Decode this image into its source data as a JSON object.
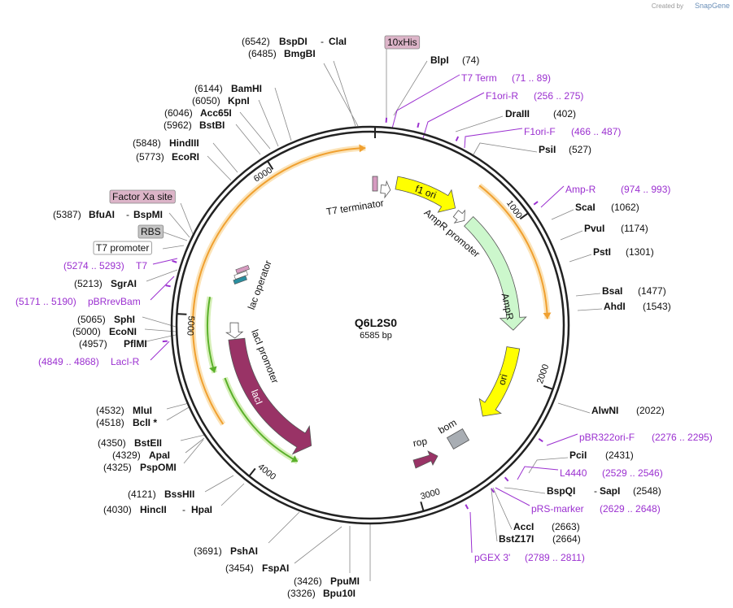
{
  "credit": {
    "prefix": "Created by",
    "brand": "SnapGene"
  },
  "plasmid": {
    "name": "Q6L2S0",
    "length": "6585 bp"
  },
  "ruler": [
    "1000",
    "2000",
    "3000",
    "4000",
    "5000",
    "6000"
  ],
  "features": [
    "T7 terminator",
    "f1 ori",
    "AmpR promoter",
    "AmpR",
    "ori",
    "rop",
    "bom",
    "lacI",
    "lacI promoter",
    "lac operator"
  ],
  "labels": [
    {
      "position": "(6542)",
      "name": "BspDI",
      "separator": "-",
      "name2": "ClaI"
    },
    {
      "position": "(6485)",
      "name": "BmgBI"
    },
    {
      "box": "10xHis"
    },
    {
      "name": "BlpI",
      "position": "(74)"
    },
    {
      "primer": "T7 Term",
      "range": "(71 .. 89)"
    },
    {
      "primer": "F1ori-R",
      "range": "(256 .. 275)"
    },
    {
      "name": "DraIII",
      "position": "(402)"
    },
    {
      "primer": "F1ori-F",
      "range": "(466 .. 487)"
    },
    {
      "name": "PsiI",
      "position": "(527)"
    },
    {
      "primer": "Amp-R",
      "range": "(974 .. 993)"
    },
    {
      "name": "ScaI",
      "position": "(1062)"
    },
    {
      "name": "PvuI",
      "position": "(1174)"
    },
    {
      "name": "PstI",
      "position": "(1301)"
    },
    {
      "name": "BsaI",
      "position": "(1477)"
    },
    {
      "name": "AhdI",
      "position": "(1543)"
    },
    {
      "name": "AlwNI",
      "position": "(2022)"
    },
    {
      "primer": "pBR322ori-F",
      "range": "(2276 .. 2295)"
    },
    {
      "name": "PciI",
      "position": "(2431)"
    },
    {
      "primer": "L4440",
      "range": "(2529 .. 2546)"
    },
    {
      "name": "BspQI",
      "separator": "-",
      "name2": "SapI",
      "position": "(2548)"
    },
    {
      "primer": "pRS-marker",
      "range": "(2629 .. 2648)"
    },
    {
      "name": "AccI",
      "position": "(2663)"
    },
    {
      "name": "BstZ17I",
      "position": "(2664)"
    },
    {
      "primer": "pGEX 3'",
      "range": "(2789 .. 2811)"
    },
    {
      "position": "(3326)",
      "name": "Bpu10I"
    },
    {
      "position": "(3426)",
      "name": "PpuMI"
    },
    {
      "position": "(3454)",
      "name": "FspAI"
    },
    {
      "position": "(3691)",
      "name": "PshAI"
    },
    {
      "position": "(4030)",
      "name": "HincII",
      "separator": "-",
      "name2": "HpaI"
    },
    {
      "position": "(4121)",
      "name": "BssHII"
    },
    {
      "position": "(4325)",
      "name": "PspOMI"
    },
    {
      "position": "(4329)",
      "name": "ApaI"
    },
    {
      "position": "(4350)",
      "name": "BstEII"
    },
    {
      "position": "(4518)",
      "name": "BclI *"
    },
    {
      "position": "(4532)",
      "name": "MluI"
    },
    {
      "range": "(4849 .. 4868)",
      "primer": "LacI-R"
    },
    {
      "position": "(4957)",
      "name": "PflMI"
    },
    {
      "position": "(5000)",
      "name": "EcoNI"
    },
    {
      "position": "(5065)",
      "name": "SphI"
    },
    {
      "range": "(5171 .. 5190)",
      "primer": "pBRrevBam"
    },
    {
      "position": "(5213)",
      "name": "SgrAI"
    },
    {
      "range": "(5274 .. 5293)",
      "primer": "T7"
    },
    {
      "box": "T7 promoter"
    },
    {
      "box": "RBS"
    },
    {
      "position": "(5387)",
      "name": "BfuAI",
      "separator": "-",
      "name2": "BspMI"
    },
    {
      "box": "Factor Xa site"
    },
    {
      "position": "(5773)",
      "name": "EcoRI"
    },
    {
      "position": "(5848)",
      "name": "HindIII"
    },
    {
      "position": "(5962)",
      "name": "BstBI"
    },
    {
      "position": "(6046)",
      "name": "Acc65I"
    },
    {
      "position": "(6050)",
      "name": "KpnI"
    },
    {
      "position": "(6144)",
      "name": "BamHI"
    }
  ]
}
